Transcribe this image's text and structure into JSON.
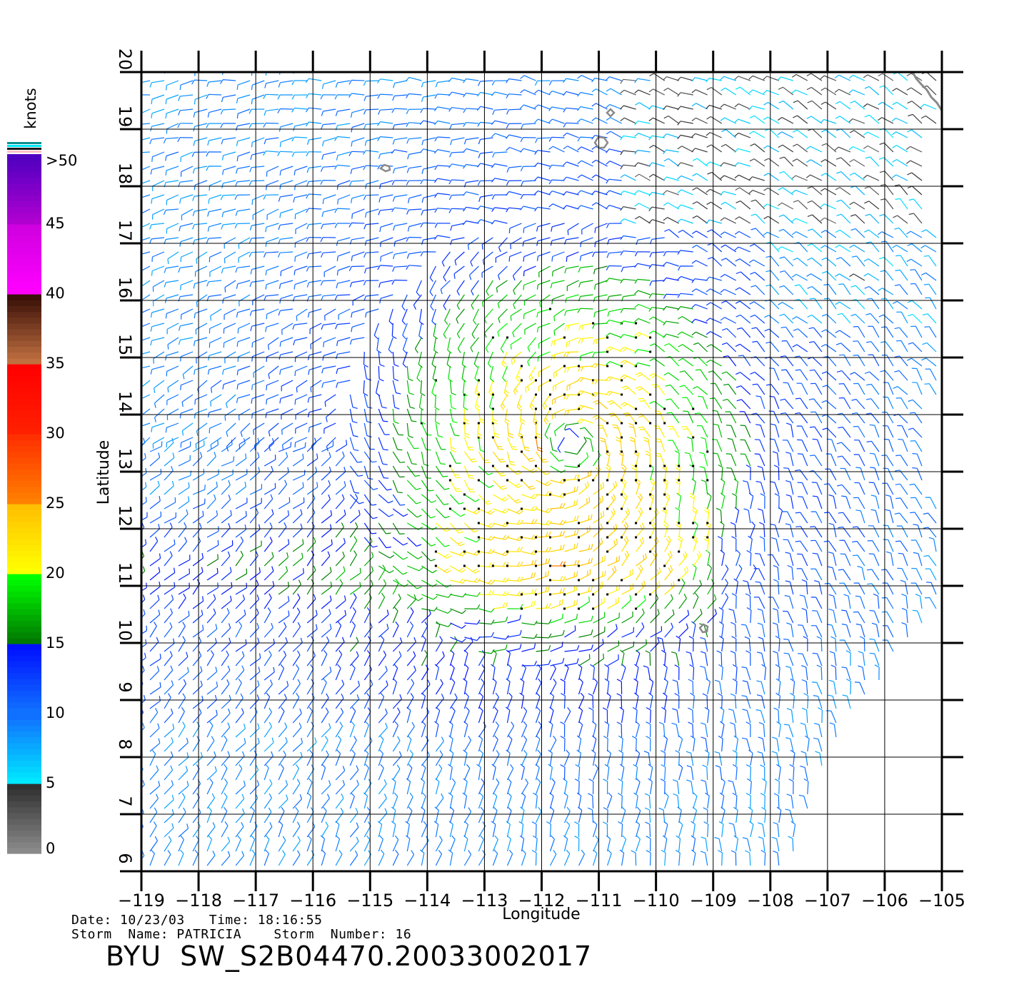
{
  "chart_data": {
    "type": "wind-vector-map",
    "xlabel": "Longitude",
    "ylabel": "Latitude",
    "xlim": [
      -119,
      -105
    ],
    "ylim": [
      6,
      20
    ],
    "grid": true,
    "x_tick_labels": [
      "−119",
      "−118",
      "−117",
      "−116",
      "−115",
      "−114",
      "−113",
      "−112",
      "−111",
      "−110",
      "−109",
      "−108",
      "−107",
      "−106",
      "−105"
    ],
    "y_tick_labels": [
      "6",
      "7",
      "8",
      "9",
      "10",
      "11",
      "12",
      "13",
      "14",
      "15",
      "16",
      "17",
      "18",
      "19",
      "20"
    ],
    "storm_center": {
      "lon": -111.5,
      "lat": 13.5
    },
    "swath_east_edge_lon_south": -108.0,
    "swath_east_edge_lon_north": -105.0,
    "colorbar": {
      "title": "knots",
      "tick_labels": [
        "0",
        "5",
        "10",
        "15",
        "20",
        "25",
        "30",
        "35",
        "40",
        "45",
        ">50"
      ],
      "bands": [
        {
          "from": 0,
          "to": 5,
          "colors": [
            "#8a8a8a",
            "#303030"
          ]
        },
        {
          "from": 5,
          "to": 10,
          "colors": [
            "#00e8ff",
            "#1070ff"
          ]
        },
        {
          "from": 10,
          "to": 15,
          "colors": [
            "#1070ff",
            "#0010ff"
          ]
        },
        {
          "from": 15,
          "to": 20,
          "colors": [
            "#007a00",
            "#00ff00"
          ]
        },
        {
          "from": 20,
          "to": 25,
          "colors": [
            "#ffff00",
            "#ffc000"
          ]
        },
        {
          "from": 25,
          "to": 30,
          "colors": [
            "#ff8000",
            "#ff3000"
          ]
        },
        {
          "from": 30,
          "to": 35,
          "colors": [
            "#ff2000",
            "#ff0000"
          ]
        },
        {
          "from": 35,
          "to": 40,
          "colors": [
            "#c07040",
            "#3a1008"
          ]
        },
        {
          "from": 40,
          "to": 45,
          "colors": [
            "#ff00ff",
            "#d000e0"
          ]
        },
        {
          "from": 45,
          "to": 50,
          "colors": [
            "#b000d0",
            "#5000c0"
          ]
        }
      ]
    }
  },
  "footer": {
    "date_line": "Date: 10/23/03   Time: 18:16:55",
    "storm_line": "Storm  Name: PATRICIA    Storm  Number: 16",
    "product_id": "BYU  SW_S2B04470.20033002017"
  }
}
